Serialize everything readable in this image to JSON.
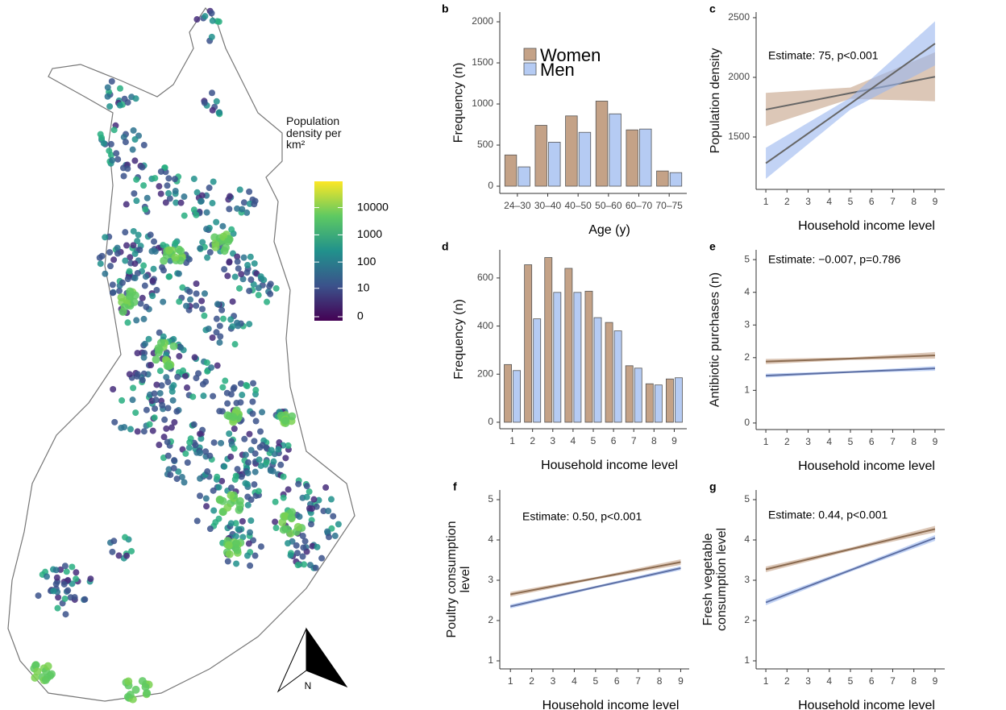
{
  "chart_data": [
    {
      "type": "map",
      "colorbar": {
        "title": "Population density per km²",
        "scale": "log1p",
        "clim": [
          0,
          80000
        ],
        "ticks": [
          0,
          10,
          100,
          1000,
          10000
        ],
        "colors": [
          "#440154",
          "#3b528b",
          "#21918c",
          "#5ec962",
          "#fde725"
        ]
      },
      "compass_label": "N"
    },
    {
      "type": "bar",
      "panel": "b",
      "xlabel": "Age (y)",
      "ylabel": "Frequency (n)",
      "categories": [
        "24–30",
        "30–40",
        "40–50",
        "50–60",
        "60–70",
        "70–75"
      ],
      "series": [
        {
          "name": "Women",
          "color": "#c4a287",
          "values": [
            380,
            740,
            855,
            1035,
            685,
            185
          ]
        },
        {
          "name": "Men",
          "color": "#b5cbf3",
          "values": [
            235,
            535,
            655,
            880,
            695,
            165
          ]
        }
      ],
      "ylim": [
        -88,
        2118
      ],
      "yticks": [
        0,
        500,
        1000,
        1500,
        2000
      ],
      "legend": "top-left"
    },
    {
      "type": "line",
      "panel": "c",
      "annotation": "Estimate: 75, p<0.001",
      "xlabel": "Household income level",
      "ylabel": "Population density",
      "x": [
        1,
        5,
        9
      ],
      "xlim": [
        0.54,
        9.46
      ],
      "xticks": [
        1,
        2,
        3,
        4,
        5,
        6,
        7,
        8,
        9
      ],
      "ylim": [
        1061,
        2547
      ],
      "yticks": [
        1500,
        2000,
        2500
      ],
      "series": [
        {
          "color": "#666666",
          "band_color": "#c4a287",
          "values": [
            1730,
            1868,
            2005
          ],
          "lower": [
            1590,
            1820,
            1800
          ],
          "upper": [
            1870,
            1915,
            2210
          ]
        },
        {
          "color": "#666666",
          "band_color": "#9ab5ee",
          "values": [
            1280,
            1780,
            2283
          ],
          "lower": [
            1150,
            1730,
            2100
          ],
          "upper": [
            1410,
            1830,
            2470
          ]
        }
      ]
    },
    {
      "type": "bar",
      "panel": "d",
      "xlabel": "Household income level",
      "ylabel": "Frequency (n)",
      "categories": [
        "1",
        "2",
        "3",
        "4",
        "5",
        "6",
        "7",
        "8",
        "9"
      ],
      "series": [
        {
          "name": "Women",
          "color": "#c4a287",
          "values": [
            240,
            655,
            685,
            640,
            545,
            415,
            235,
            160,
            180
          ]
        },
        {
          "name": "Men",
          "color": "#b5cbf3",
          "values": [
            215,
            430,
            540,
            540,
            435,
            380,
            225,
            155,
            185
          ]
        }
      ],
      "ylim": [
        -27,
        717
      ],
      "yticks": [
        0,
        200,
        400,
        600
      ]
    },
    {
      "type": "line",
      "panel": "e",
      "annotation": "Estimate: −0.007, p=0.786",
      "xlabel": "Household income level",
      "ylabel": "Antibiotic purchases (n)",
      "x": [
        1,
        5,
        9
      ],
      "xlim": [
        0.54,
        9.46
      ],
      "xticks": [
        1,
        2,
        3,
        4,
        5,
        6,
        7,
        8,
        9
      ],
      "ylim": [
        -0.2,
        5.3
      ],
      "yticks": [
        0,
        1,
        2,
        3,
        4,
        5
      ],
      "series": [
        {
          "color": "#8b6b50",
          "band_color": "#c4a287",
          "values": [
            1.88,
            1.97,
            2.07
          ],
          "lower": [
            1.8,
            1.93,
            1.97
          ],
          "upper": [
            1.96,
            2.01,
            2.17
          ]
        },
        {
          "color": "#5d6fa3",
          "band_color": "#9ab5ee",
          "values": [
            1.45,
            1.56,
            1.67
          ],
          "lower": [
            1.39,
            1.53,
            1.6
          ],
          "upper": [
            1.51,
            1.59,
            1.74
          ]
        }
      ]
    },
    {
      "type": "line",
      "panel": "f",
      "annotation": "Estimate: 0.50, p<0.001",
      "xlabel": "Household income level",
      "ylabel": "Poultry consumption level",
      "x": [
        1,
        5,
        9
      ],
      "xlim": [
        0.5,
        9.4
      ],
      "xticks": [
        1,
        2,
        3,
        4,
        5,
        6,
        7,
        8,
        9
      ],
      "ylim": [
        0.8,
        5.24
      ],
      "yticks": [
        1,
        2,
        3,
        4,
        5
      ],
      "series": [
        {
          "color": "#8b6b50",
          "band_color": "#c4a287",
          "values": [
            2.65,
            3.05,
            3.45
          ],
          "lower": [
            2.59,
            3.02,
            3.38
          ],
          "upper": [
            2.71,
            3.08,
            3.52
          ]
        },
        {
          "color": "#5d6fa3",
          "band_color": "#9ab5ee",
          "values": [
            2.35,
            2.83,
            3.3
          ],
          "lower": [
            2.3,
            2.8,
            3.25
          ],
          "upper": [
            2.4,
            2.86,
            3.35
          ]
        }
      ]
    },
    {
      "type": "line",
      "panel": "g",
      "annotation": "Estimate: 0.44, p<0.001",
      "xlabel": "Household income level",
      "ylabel": "Fresh vegetable consumption level",
      "x": [
        1,
        5,
        9
      ],
      "xlim": [
        0.54,
        9.46
      ],
      "xticks": [
        1,
        2,
        3,
        4,
        5,
        6,
        7,
        8,
        9
      ],
      "ylim": [
        0.8,
        5.24
      ],
      "yticks": [
        1,
        2,
        3,
        4,
        5
      ],
      "series": [
        {
          "color": "#8b6b50",
          "band_color": "#c4a287",
          "values": [
            3.27,
            3.77,
            4.27
          ],
          "lower": [
            3.2,
            3.73,
            4.19
          ],
          "upper": [
            3.34,
            3.81,
            4.35
          ]
        },
        {
          "color": "#5d6fa3",
          "band_color": "#9ab5ee",
          "values": [
            2.45,
            3.25,
            4.05
          ],
          "lower": [
            2.38,
            3.21,
            3.98
          ],
          "upper": [
            2.52,
            3.29,
            4.12
          ]
        }
      ]
    }
  ]
}
